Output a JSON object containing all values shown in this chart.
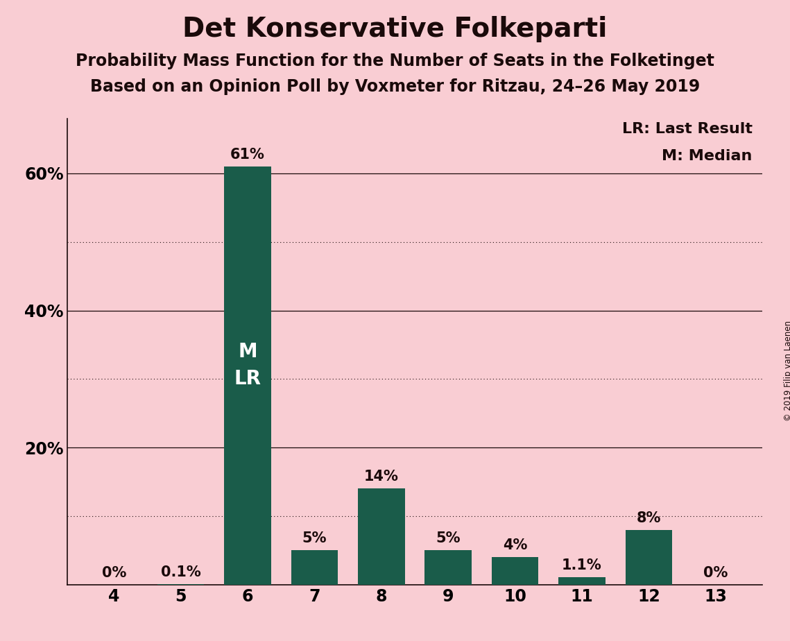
{
  "title": "Det Konservative Folkeparti",
  "subtitle1": "Probability Mass Function for the Number of Seats in the Folketinget",
  "subtitle2": "Based on an Opinion Poll by Voxmeter for Ritzau, 24–26 May 2019",
  "copyright": "© 2019 Filip van Laenen",
  "categories": [
    4,
    5,
    6,
    7,
    8,
    9,
    10,
    11,
    12,
    13
  ],
  "values": [
    0.0,
    0.1,
    61.0,
    5.0,
    14.0,
    5.0,
    4.0,
    1.1,
    8.0,
    0.0
  ],
  "labels": [
    "0%",
    "0.1%",
    "61%",
    "5%",
    "14%",
    "5%",
    "4%",
    "1.1%",
    "8%",
    "0%"
  ],
  "bar_color": "#1a5c4a",
  "background_color": "#f9cdd3",
  "legend_lr": "LR: Last Result",
  "legend_m": "M: Median",
  "ylim": [
    0,
    68
  ],
  "solid_line_y": [
    20,
    40,
    60
  ],
  "dotted_line_y": [
    10,
    30,
    50
  ],
  "ytick_positions": [
    20,
    40,
    60
  ],
  "ytick_labels": [
    "20%",
    "40%",
    "60%"
  ],
  "bar_width": 0.7,
  "title_fontsize": 28,
  "subtitle_fontsize": 17,
  "label_fontsize": 15,
  "tick_fontsize": 17,
  "legend_fontsize": 16,
  "m_lr_fontsize": 20,
  "xlim_left": 3.3,
  "xlim_right": 13.7
}
